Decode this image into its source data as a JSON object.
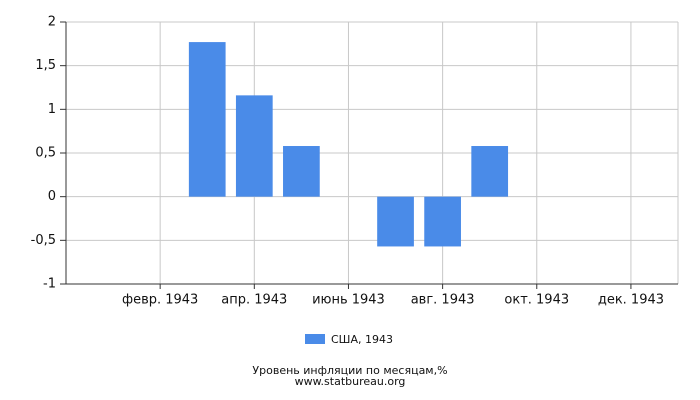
{
  "chart_data": {
    "type": "bar",
    "categories": [
      null,
      "февр. 1943",
      null,
      "апр. 1943",
      null,
      "июнь 1943",
      null,
      "авг. 1943",
      null,
      "окт. 1943",
      null,
      "дек. 1943"
    ],
    "series": [
      {
        "name": "США, 1943",
        "color": "#4a8be8",
        "values": [
          0,
          0,
          1.77,
          1.16,
          0.58,
          0,
          -0.57,
          -0.57,
          0.58,
          0,
          0,
          0
        ]
      }
    ],
    "ylim": [
      -1,
      2
    ],
    "yticks": [
      -1,
      {
        "value": -0.5,
        "label": "-0,5"
      },
      0,
      {
        "value": 0.5,
        "label": "0,5"
      },
      1,
      {
        "value": 1.5,
        "label": "1,5"
      },
      2
    ],
    "grid": true,
    "legend": "bottom",
    "footer": [
      "Уровень инфляции по месяцам,%",
      "www.statbureau.org"
    ]
  }
}
